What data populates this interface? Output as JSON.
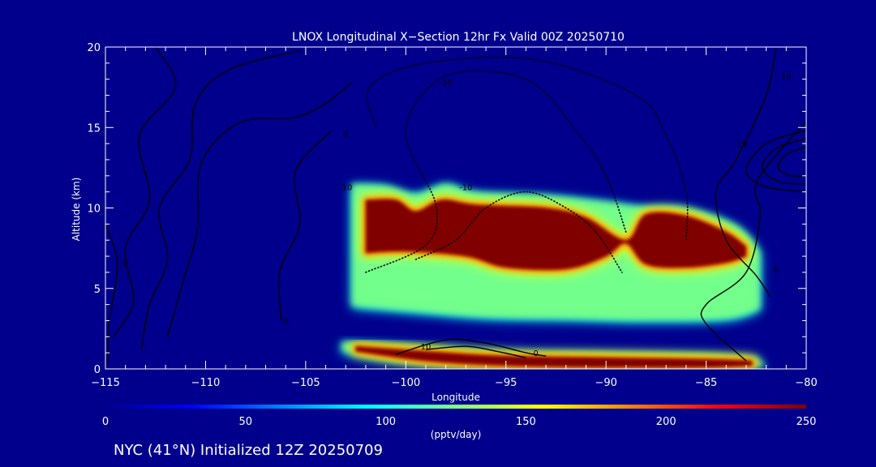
{
  "colors": {
    "background": "#00008c",
    "foreground": "#ffffff",
    "contour": "#000000",
    "colormap": [
      "#00008c",
      "#0000ff",
      "#0080ff",
      "#00ffff",
      "#80ff80",
      "#ffff00",
      "#ff8000",
      "#ff0000",
      "#800000"
    ]
  },
  "footer_text": "NYC (41°N) Initialized 12Z 20250709",
  "chart_data": {
    "type": "heatmap",
    "title": "LNOX Longitudinal X−Section 12hr  Fx Valid 00Z 20250710",
    "xlabel": "Longitude",
    "ylabel": "Altitude (km)",
    "xlim": [
      -115,
      -80
    ],
    "ylim": [
      0,
      20
    ],
    "x_ticks": [
      -115,
      -110,
      -105,
      -100,
      -95,
      -90,
      -85,
      -80
    ],
    "x_tick_labels": [
      "−115",
      "−110",
      "−105",
      "−100",
      "−95",
      "−90",
      "−85",
      "−80"
    ],
    "y_ticks": [
      0,
      5,
      10,
      15,
      20
    ],
    "y_tick_labels": [
      "0",
      "5",
      "10",
      "15",
      "20"
    ],
    "colorbar": {
      "label": "(pptv/day)",
      "range": [
        0,
        250
      ],
      "ticks": [
        0,
        50,
        100,
        150,
        200,
        250
      ],
      "tick_labels": [
        "0",
        "50",
        "100",
        "150",
        "200",
        "250"
      ]
    },
    "grid": false,
    "bands": [
      {
        "name": "upper-band",
        "peak": 250,
        "top": [
          [
            -102.7,
            11.4
          ],
          [
            -101,
            11.3
          ],
          [
            -99.5,
            10.8
          ],
          [
            -98,
            11.4
          ],
          [
            -96.5,
            10.9
          ],
          [
            -93,
            10.7
          ],
          [
            -90,
            10.3
          ],
          [
            -88.2,
            10.0
          ],
          [
            -86,
            9.9
          ],
          [
            -83.5,
            8.8
          ],
          [
            -82.3,
            7.2
          ]
        ],
        "bottom": [
          [
            -102.7,
            3.8
          ],
          [
            -100,
            3.5
          ],
          [
            -96,
            3.1
          ],
          [
            -92,
            3.0
          ],
          [
            -88,
            2.9
          ],
          [
            -84,
            3.0
          ],
          [
            -82.3,
            3.6
          ]
        ],
        "core_top": [
          [
            -102,
            10.5
          ],
          [
            -100.5,
            10.5
          ],
          [
            -99.5,
            9.8
          ],
          [
            -98.2,
            10.5
          ],
          [
            -96.5,
            10.2
          ],
          [
            -93,
            10.0
          ],
          [
            -91,
            9.4
          ],
          [
            -89,
            8.0
          ],
          [
            -88,
            9.6
          ],
          [
            -86,
            9.5
          ],
          [
            -84,
            8.5
          ],
          [
            -83,
            7.6
          ]
        ],
        "core_bottom": [
          [
            -102,
            7.2
          ],
          [
            -100,
            7.3
          ],
          [
            -97,
            7.0
          ],
          [
            -95,
            6.3
          ],
          [
            -92,
            6.2
          ],
          [
            -90,
            7.0
          ],
          [
            -89,
            7.8
          ],
          [
            -88,
            6.5
          ],
          [
            -86,
            6.3
          ],
          [
            -84,
            6.6
          ],
          [
            -83,
            7.0
          ]
        ]
      },
      {
        "name": "lower-band",
        "peak": 250,
        "top": [
          [
            -103.2,
            1.6
          ],
          [
            -100,
            1.4
          ],
          [
            -95,
            1.0
          ],
          [
            -90,
            0.9
          ],
          [
            -85,
            0.8
          ],
          [
            -82.5,
            0.6
          ]
        ],
        "bottom": [
          [
            -103.2,
            1.0
          ],
          [
            -100,
            0.4
          ],
          [
            -95,
            0.1
          ],
          [
            -90,
            0.05
          ],
          [
            -85,
            0.05
          ],
          [
            -82,
            0.1
          ]
        ],
        "core_top": [
          [
            -102.5,
            1.4
          ],
          [
            -99,
            1.1
          ],
          [
            -95,
            0.8
          ],
          [
            -90,
            0.7
          ],
          [
            -85,
            0.6
          ],
          [
            -82.7,
            0.5
          ]
        ],
        "core_bottom": [
          [
            -102.5,
            1.1
          ],
          [
            -99,
            0.5
          ],
          [
            -95,
            0.2
          ],
          [
            -90,
            0.1
          ],
          [
            -85,
            0.1
          ],
          [
            -82.7,
            0.2
          ]
        ]
      }
    ],
    "contours": [
      {
        "style": "solid",
        "points": [
          [
            -114.6,
            2.0
          ],
          [
            -113.6,
            4.2
          ],
          [
            -114.0,
            7.5
          ],
          [
            -112.8,
            10.5
          ],
          [
            -113.3,
            14.5
          ],
          [
            -111.5,
            17.5
          ],
          [
            -112.5,
            20.0
          ]
        ]
      },
      {
        "style": "solid",
        "points": [
          [
            -113.2,
            1.2
          ],
          [
            -112.8,
            4.0
          ],
          [
            -111.9,
            6.8
          ],
          [
            -112.3,
            10.0
          ],
          [
            -110.8,
            13.0
          ],
          [
            -110.5,
            16.5
          ],
          [
            -108.8,
            18.6
          ],
          [
            -105.2,
            19.8
          ]
        ]
      },
      {
        "style": "solid",
        "points": [
          [
            -111.9,
            2.0
          ],
          [
            -111.1,
            5.5
          ],
          [
            -110.4,
            8.7
          ],
          [
            -110.2,
            12.8
          ],
          [
            -108.3,
            15.3
          ],
          [
            -105.6,
            15.6
          ],
          [
            -104.0,
            16.5
          ],
          [
            -102.7,
            17.8
          ]
        ]
      },
      {
        "style": "solid",
        "points": [
          [
            -106.2,
            3.0
          ],
          [
            -106.3,
            6.0
          ],
          [
            -105.3,
            9.0
          ],
          [
            -105.5,
            12.3
          ],
          [
            -103.7,
            14.8
          ]
        ]
      },
      {
        "style": "solid",
        "points": [
          [
            -114.9,
            0.3
          ],
          [
            -114.8,
            3.0
          ],
          [
            -114.4,
            6.5
          ],
          [
            -115.0,
            9.0
          ]
        ]
      },
      {
        "style": "dotted",
        "points": [
          [
            -102.0,
            6.0
          ],
          [
            -99.0,
            7.7
          ],
          [
            -98.5,
            10.2
          ],
          [
            -100.0,
            14.8
          ],
          [
            -98.0,
            18.2
          ],
          [
            -94.0,
            18.0
          ],
          [
            -91.5,
            14.8
          ],
          [
            -90.0,
            12.0
          ],
          [
            -89.0,
            8.5
          ]
        ]
      },
      {
        "style": "dotted",
        "points": [
          [
            -99.5,
            6.8
          ],
          [
            -97.5,
            8.0
          ],
          [
            -96.0,
            10.0
          ],
          [
            -94.0,
            11.0
          ],
          [
            -92.0,
            10.0
          ],
          [
            -90.5,
            8.5
          ],
          [
            -89.2,
            6.0
          ]
        ]
      },
      {
        "style": "dotted",
        "points": [
          [
            -101.5,
            15.0
          ],
          [
            -101.8,
            17.5
          ],
          [
            -99.0,
            19.0
          ],
          [
            -93.5,
            19.2
          ],
          [
            -88.5,
            17.0
          ],
          [
            -87.0,
            14.5
          ],
          [
            -86.0,
            11.0
          ],
          [
            -86.0,
            8.0
          ]
        ]
      },
      {
        "style": "solid",
        "points": [
          [
            -100.5,
            0.9
          ],
          [
            -98.0,
            1.8
          ],
          [
            -96.0,
            1.6
          ],
          [
            -94.0,
            1.0
          ],
          [
            -93.0,
            0.8
          ]
        ]
      },
      {
        "style": "solid",
        "points": [
          [
            -99.0,
            1.2
          ],
          [
            -97.0,
            1.4
          ],
          [
            -95.5,
            1.1
          ],
          [
            -94.0,
            0.7
          ]
        ]
      },
      {
        "style": "solid",
        "points": [
          [
            -81.5,
            20.0
          ],
          [
            -82.0,
            17.0
          ],
          [
            -83.5,
            13.0
          ],
          [
            -84.5,
            11.0
          ],
          [
            -84.0,
            8.0
          ],
          [
            -82.5,
            5.8
          ],
          [
            -81.8,
            4.5
          ]
        ]
      },
      {
        "style": "solid",
        "points": [
          [
            -80.0,
            15.3
          ],
          [
            -81.0,
            14.0
          ],
          [
            -82.5,
            11.5
          ],
          [
            -82.3,
            9.5
          ],
          [
            -83.0,
            6.0
          ],
          [
            -85.0,
            4.0
          ],
          [
            -85.0,
            2.8
          ],
          [
            -83.0,
            0.5
          ]
        ]
      },
      {
        "style": "solid",
        "points": [
          [
            -80.0,
            14.8
          ],
          [
            -82.0,
            14.0
          ],
          [
            -83.0,
            12.3
          ],
          [
            -82.0,
            11.3
          ],
          [
            -80.0,
            11.0
          ]
        ]
      },
      {
        "style": "solid",
        "points": [
          [
            -80.0,
            14.3
          ],
          [
            -81.5,
            13.7
          ],
          [
            -82.2,
            12.5
          ],
          [
            -81.3,
            11.6
          ],
          [
            -80.0,
            11.5
          ]
        ]
      },
      {
        "style": "solid",
        "points": [
          [
            -80.0,
            13.8
          ],
          [
            -81.0,
            13.3
          ],
          [
            -81.4,
            12.5
          ],
          [
            -80.8,
            12.0
          ],
          [
            -80.0,
            12.0
          ]
        ]
      }
    ],
    "contour_labels": [
      {
        "text": "0",
        "x": -114.0,
        "y": 6.6
      },
      {
        "text": "0",
        "x": -106.0,
        "y": 3.0
      },
      {
        "text": "0",
        "x": -103.0,
        "y": 14.6
      },
      {
        "text": "0",
        "x": -93.5,
        "y": 1.0
      },
      {
        "text": "0",
        "x": -81.5,
        "y": 6.2
      },
      {
        "text": "-10",
        "x": -98.0,
        "y": 17.8
      },
      {
        "text": "-10",
        "x": -97.0,
        "y": 11.3
      },
      {
        "text": "-10",
        "x": -103.0,
        "y": 11.3
      },
      {
        "text": "10",
        "x": -99.0,
        "y": 1.4
      },
      {
        "text": "10",
        "x": -83.2,
        "y": 14.0
      },
      {
        "text": "10",
        "x": -81.0,
        "y": 18.2
      }
    ]
  }
}
